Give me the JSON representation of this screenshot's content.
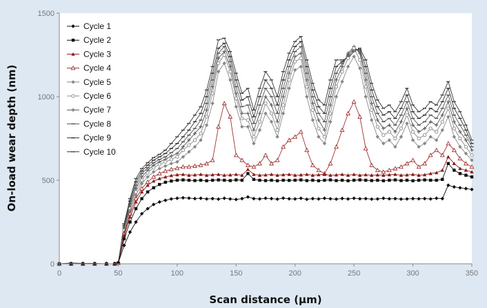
{
  "chart_data": {
    "type": "line",
    "title": "",
    "xlabel": "Scan distance (µm)",
    "ylabel": "On-load wear depth (nm)",
    "xlim": [
      0,
      350
    ],
    "ylim": [
      0,
      1500
    ],
    "xticks": [
      "0",
      "50",
      "100",
      "150",
      "200",
      "250",
      "300",
      "350"
    ],
    "yticks": [
      "0",
      "500",
      "1000",
      "1500"
    ],
    "grid": false,
    "legend_position": "top-left",
    "x": [
      0,
      10,
      20,
      30,
      40,
      47,
      50,
      55,
      60,
      65,
      70,
      75,
      80,
      85,
      90,
      95,
      100,
      105,
      110,
      115,
      120,
      125,
      130,
      135,
      140,
      145,
      150,
      155,
      160,
      165,
      170,
      175,
      180,
      185,
      190,
      195,
      200,
      205,
      210,
      215,
      220,
      225,
      230,
      235,
      240,
      245,
      250,
      255,
      260,
      265,
      270,
      275,
      280,
      285,
      290,
      295,
      300,
      305,
      310,
      315,
      320,
      325,
      330,
      335,
      340,
      345,
      350
    ],
    "series": [
      {
        "name": "Cycle 1",
        "marker": "diamond",
        "color": "#111111",
        "values": [
          0,
          0,
          0,
          0,
          0,
          0,
          5,
          110,
          190,
          250,
          300,
          330,
          355,
          370,
          380,
          388,
          392,
          395,
          393,
          390,
          392,
          388,
          390,
          387,
          392,
          388,
          385,
          390,
          400,
          390,
          388,
          392,
          390,
          387,
          393,
          389,
          388,
          392,
          386,
          390,
          388,
          392,
          389,
          387,
          391,
          388,
          392,
          389,
          390,
          387,
          388,
          392,
          389,
          390,
          387,
          388,
          390,
          389,
          390,
          388,
          392,
          390,
          470,
          460,
          455,
          450,
          445
        ]
      },
      {
        "name": "Cycle 2",
        "marker": "square",
        "color": "#111111",
        "values": [
          0,
          0,
          0,
          0,
          0,
          0,
          5,
          150,
          250,
          330,
          390,
          430,
          455,
          475,
          488,
          495,
          500,
          502,
          500,
          498,
          500,
          497,
          500,
          502,
          500,
          498,
          502,
          500,
          540,
          505,
          500,
          498,
          500,
          497,
          500,
          499,
          500,
          502,
          498,
          500,
          497,
          500,
          502,
          498,
          500,
          497,
          500,
          502,
          500,
          498,
          500,
          497,
          500,
          502,
          498,
          500,
          497,
          500,
          502,
          500,
          500,
          505,
          600,
          560,
          540,
          530,
          520
        ]
      },
      {
        "name": "Cycle 3",
        "marker": "triangle",
        "color": "#8b1a1a",
        "values": [
          0,
          0,
          0,
          0,
          0,
          0,
          5,
          170,
          280,
          370,
          430,
          470,
          495,
          510,
          520,
          528,
          533,
          535,
          530,
          532,
          535,
          530,
          533,
          535,
          530,
          532,
          535,
          530,
          565,
          535,
          530,
          532,
          535,
          530,
          533,
          535,
          530,
          532,
          535,
          530,
          533,
          535,
          530,
          532,
          535,
          530,
          535,
          530,
          533,
          530,
          532,
          530,
          533,
          535,
          530,
          532,
          535,
          530,
          533,
          540,
          545,
          560,
          640,
          600,
          570,
          560,
          550
        ]
      },
      {
        "name": "Cycle 4",
        "marker": "triangle-open",
        "color": "#a03030",
        "values": [
          0,
          0,
          0,
          0,
          0,
          0,
          5,
          180,
          300,
          390,
          450,
          490,
          520,
          540,
          555,
          565,
          572,
          580,
          580,
          585,
          590,
          600,
          620,
          820,
          960,
          880,
          650,
          620,
          590,
          580,
          600,
          650,
          600,
          620,
          700,
          740,
          760,
          790,
          680,
          590,
          560,
          540,
          600,
          700,
          800,
          900,
          970,
          880,
          690,
          590,
          560,
          550,
          560,
          570,
          580,
          600,
          620,
          580,
          600,
          650,
          680,
          650,
          720,
          680,
          630,
          600,
          580
        ]
      },
      {
        "name": "Cycle 5",
        "marker": "diamond",
        "color": "#888888",
        "values": [
          0,
          0,
          0,
          0,
          0,
          0,
          5,
          190,
          320,
          410,
          480,
          520,
          550,
          570,
          585,
          600,
          610,
          640,
          670,
          700,
          740,
          830,
          960,
          1150,
          1200,
          1100,
          940,
          820,
          820,
          720,
          800,
          900,
          850,
          760,
          900,
          1050,
          1160,
          1180,
          1000,
          860,
          760,
          720,
          850,
          1000,
          1090,
          1180,
          1240,
          1170,
          1000,
          860,
          760,
          720,
          740,
          700,
          760,
          840,
          740,
          700,
          720,
          760,
          740,
          800,
          880,
          760,
          700,
          660,
          620
        ]
      },
      {
        "name": "Cycle 6",
        "marker": "circle-open",
        "color": "#888888",
        "values": [
          0,
          0,
          0,
          0,
          0,
          0,
          5,
          200,
          330,
          430,
          500,
          545,
          575,
          595,
          610,
          625,
          640,
          680,
          710,
          740,
          780,
          880,
          1020,
          1200,
          1250,
          1150,
          990,
          870,
          860,
          760,
          850,
          960,
          900,
          800,
          950,
          1100,
          1210,
          1230,
          1060,
          920,
          810,
          760,
          900,
          1060,
          1150,
          1230,
          1290,
          1220,
          1060,
          920,
          820,
          770,
          790,
          750,
          810,
          890,
          790,
          750,
          770,
          810,
          790,
          850,
          930,
          810,
          750,
          700,
          650
        ]
      },
      {
        "name": "Cycle 7",
        "marker": "plus",
        "color": "#555555",
        "values": [
          0,
          0,
          0,
          0,
          0,
          0,
          5,
          210,
          345,
          450,
          520,
          560,
          590,
          610,
          625,
          645,
          660,
          700,
          740,
          780,
          820,
          920,
          1060,
          1230,
          1270,
          1180,
          1020,
          900,
          900,
          800,
          900,
          1000,
          950,
          850,
          1000,
          1140,
          1240,
          1260,
          1100,
          960,
          860,
          800,
          950,
          1100,
          1180,
          1260,
          1300,
          1260,
          1100,
          960,
          860,
          810,
          830,
          790,
          850,
          930,
          830,
          790,
          810,
          850,
          830,
          890,
          970,
          850,
          790,
          740,
          680
        ]
      },
      {
        "name": "Cycle 8",
        "marker": "dash",
        "color": "#555555",
        "values": [
          0,
          0,
          0,
          0,
          0,
          0,
          5,
          220,
          360,
          470,
          540,
          575,
          605,
          625,
          640,
          665,
          690,
          730,
          770,
          810,
          860,
          960,
          1100,
          1260,
          1300,
          1210,
          1060,
          940,
          950,
          840,
          950,
          1050,
          1000,
          900,
          1050,
          1180,
          1270,
          1300,
          1140,
          1000,
          900,
          850,
          1000,
          1140,
          1200,
          1250,
          1290,
          1270,
          1140,
          1000,
          900,
          850,
          870,
          830,
          890,
          970,
          870,
          830,
          850,
          890,
          870,
          930,
          1010,
          890,
          830,
          770,
          700
        ]
      },
      {
        "name": "Cycle 9",
        "marker": "dash",
        "color": "#333333",
        "values": [
          0,
          0,
          0,
          0,
          0,
          0,
          5,
          230,
          375,
          490,
          555,
          590,
          620,
          640,
          660,
          690,
          720,
          760,
          800,
          850,
          900,
          1000,
          1140,
          1290,
          1320,
          1240,
          1100,
          980,
          1000,
          880,
          1000,
          1100,
          1050,
          950,
          1100,
          1220,
          1300,
          1330,
          1180,
          1040,
          940,
          900,
          1050,
          1180,
          1210,
          1240,
          1280,
          1280,
          1180,
          1040,
          940,
          890,
          910,
          870,
          930,
          1010,
          910,
          870,
          890,
          930,
          910,
          970,
          1050,
          930,
          870,
          800,
          720
        ]
      },
      {
        "name": "Cycle 10",
        "marker": "dash-dot",
        "color": "#333333",
        "values": [
          0,
          5,
          3,
          2,
          0,
          0,
          5,
          240,
          390,
          510,
          570,
          605,
          635,
          655,
          680,
          720,
          760,
          800,
          840,
          890,
          940,
          1040,
          1180,
          1340,
          1350,
          1270,
          1140,
          1020,
          1050,
          920,
          1050,
          1150,
          1100,
          1000,
          1150,
          1260,
          1330,
          1360,
          1220,
          1080,
          980,
          950,
          1100,
          1220,
          1220,
          1230,
          1270,
          1290,
          1220,
          1080,
          980,
          930,
          950,
          910,
          970,
          1050,
          950,
          910,
          930,
          970,
          950,
          1010,
          1090,
          970,
          910,
          830,
          740
        ]
      }
    ]
  }
}
